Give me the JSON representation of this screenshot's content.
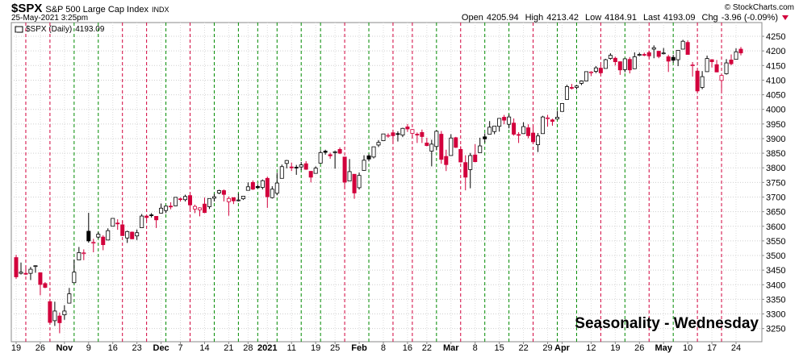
{
  "chart_data": {
    "type": "candlestick",
    "symbol": "$SPX",
    "name": "S&P 500 Large Cap Index",
    "exchange": "INDX",
    "date": "25-May-2021 3:25pm",
    "source": "© StockCharts.com",
    "labels": {
      "open": "Open",
      "high": "High",
      "low": "Low",
      "last": "Last",
      "chg": "Chg"
    },
    "change": "-3.96 (-0.09%)",
    "legend": "$SPX (Daily)",
    "annotation": "Seasonality - Wednesday",
    "categories": [
      "19",
      null,
      null,
      null,
      null,
      "26",
      null,
      null,
      null,
      null,
      "Nov",
      null,
      null,
      null,
      null,
      "9",
      null,
      null,
      null,
      null,
      "16",
      null,
      null,
      null,
      null,
      "23",
      null,
      null,
      null,
      null,
      "Dec",
      null,
      null,
      null,
      "7",
      null,
      null,
      null,
      null,
      "14",
      null,
      null,
      null,
      null,
      "21",
      null,
      null,
      null,
      "28",
      null,
      null,
      null,
      "2021",
      null,
      null,
      null,
      null,
      "11",
      null,
      null,
      null,
      null,
      "19",
      null,
      null,
      null,
      "25",
      null,
      null,
      null,
      null,
      "Feb",
      null,
      null,
      null,
      null,
      "8",
      null,
      null,
      null,
      null,
      "16",
      null,
      null,
      null,
      "22",
      null,
      null,
      null,
      null,
      "Mar",
      null,
      null,
      null,
      null,
      "8",
      null,
      null,
      null,
      null,
      "15",
      null,
      null,
      null,
      null,
      "22",
      null,
      null,
      null,
      null,
      "29",
      null,
      null,
      "Apr",
      null,
      null,
      null,
      null,
      null,
      "12",
      null,
      null,
      null,
      null,
      "19",
      null,
      null,
      null,
      null,
      "26",
      null,
      null,
      null,
      null,
      "May",
      null,
      null,
      null,
      null,
      "10",
      null,
      null,
      null,
      null,
      "17",
      null,
      null,
      null,
      null,
      "24",
      null
    ],
    "open": [
      3493,
      3439,
      3439,
      3439,
      3464,
      3441,
      3404,
      3342,
      3277,
      3293,
      3297,
      3337,
      3407,
      3485,
      3509,
      3583,
      3543,
      3563,
      3563,
      3553,
      3600,
      3611,
      3605,
      3560,
      3580,
      3567,
      3595,
      3635,
      3639,
      3634,
      3645,
      3654,
      3669,
      3670,
      3694,
      3691,
      3705,
      3659,
      3656,
      3676,
      3667,
      3696,
      3714,
      3722,
      3684,
      3698,
      3688,
      3694,
      3723,
      3750,
      3736,
      3733,
      3764,
      3698,
      3713,
      3764,
      3815,
      3803,
      3802,
      3803,
      3814,
      3788,
      3781,
      3816,
      3857,
      3845,
      3852,
      3863,
      3837,
      3755,
      3778,
      3732,
      3791,
      3841,
      3837,
      3878,
      3893,
      3911,
      3920,
      3917,
      3912,
      3940,
      3918,
      3915,
      3921,
      3885,
      3857,
      3873,
      3915,
      3839,
      3842,
      3903,
      3863,
      3818,
      3794,
      3844,
      3852,
      3906,
      3915,
      3924,
      3942,
      3973,
      3949,
      3953,
      3914,
      3917,
      3937,
      3919,
      3879,
      3917,
      3969,
      3964,
      3967,
      3993,
      4034,
      4075,
      4075,
      4089,
      4097,
      4125,
      4130,
      4141,
      4140,
      4174,
      4175,
      4163,
      4136,
      4171,
      4139,
      4185,
      4188,
      4194,
      4206,
      4199,
      4191,
      4180,
      4178,
      4170,
      4206,
      4229,
      4150,
      4131,
      4075,
      4129,
      4170,
      4153,
      4099,
      4122,
      4169,
      4171,
      4205.94
    ],
    "high": [
      3502,
      3476,
      3465,
      3461,
      3466,
      3441,
      3409,
      3342,
      3342,
      3305,
      3330,
      3389,
      3486,
      3529,
      3521,
      3646,
      3557,
      3581,
      3569,
      3593,
      3628,
      3624,
      3619,
      3585,
      3582,
      3589,
      3642,
      3635,
      3645,
      3634,
      3678,
      3670,
      3682,
      3700,
      3698,
      3708,
      3713,
      3674,
      3665,
      3698,
      3695,
      3711,
      3725,
      3726,
      3702,
      3698,
      3712,
      3703,
      3750,
      3757,
      3744,
      3760,
      3770,
      3737,
      3783,
      3811,
      3827,
      3818,
      3810,
      3820,
      3823,
      3789,
      3805,
      3860,
      3862,
      3852,
      3859,
      3870,
      3837,
      3830,
      3778,
      3784,
      3843,
      3848,
      3872,
      3895,
      3916,
      3918,
      3931,
      3925,
      3937,
      3950,
      3933,
      3921,
      3931,
      3903,
      3896,
      3928,
      3926,
      3862,
      3915,
      3906,
      3874,
      3843,
      3851,
      3881,
      3903,
      3918,
      3960,
      3944,
      3970,
      3981,
      3983,
      3969,
      3922,
      3956,
      3949,
      3942,
      3919,
      3978,
      3981,
      3968,
      3995,
      4021,
      4084,
      4087,
      4083,
      4099,
      4129,
      4131,
      4148,
      4151,
      4173,
      4192,
      4180,
      4164,
      4175,
      4179,
      4195,
      4194,
      4194,
      4201,
      4219,
      4199,
      4210,
      4187,
      4187,
      4203,
      4238,
      4236,
      4162,
      4135,
      4131,
      4184,
      4171,
      4169,
      4116,
      4172,
      4188,
      4209,
      4213.42
    ],
    "low": [
      3420,
      3435,
      3433,
      3416,
      3441,
      3364,
      3388,
      3269,
      3259,
      3234,
      3280,
      3337,
      3405,
      3485,
      3484,
      3544,
      3511,
      3558,
      3518,
      3552,
      3600,
      3588,
      3567,
      3543,
      3556,
      3553,
      3594,
      3617,
      3630,
      3594,
      3645,
      3645,
      3658,
      3669,
      3685,
      3685,
      3658,
      3645,
      3634,
      3645,
      3659,
      3685,
      3710,
      3685,
      3636,
      3676,
      3685,
      3690,
      3723,
      3724,
      3730,
      3726,
      3663,
      3695,
      3706,
      3764,
      3798,
      3789,
      3776,
      3792,
      3793,
      3750,
      3781,
      3816,
      3845,
      3831,
      3797,
      3847,
      3732,
      3755,
      3694,
      3726,
      3791,
      3822,
      3832,
      3871,
      3893,
      3903,
      3885,
      3890,
      3905,
      3923,
      3900,
      3885,
      3885,
      3874,
      3805,
      3860,
      3814,
      3789,
      3842,
      3868,
      3818,
      3723,
      3730,
      3819,
      3852,
      3886,
      3915,
      3915,
      3924,
      3949,
      3935,
      3910,
      3885,
      3917,
      3901,
      3889,
      3854,
      3917,
      3941,
      3944,
      3966,
      3993,
      4034,
      4068,
      4068,
      4083,
      4096,
      4114,
      4124,
      4120,
      4140,
      4170,
      4150,
      4118,
      4127,
      4123,
      4138,
      4182,
      4182,
      4177,
      4175,
      4175,
      4188,
      4128,
      4160,
      4148,
      4206,
      4188,
      4112,
      4060,
      4069,
      4129,
      4143,
      4127,
      4062,
      4119,
      4151,
      4171,
      4184.91
    ],
    "close": [
      3427,
      3443,
      3436,
      3453,
      3465,
      3401,
      3391,
      3271,
      3310,
      3270,
      3310,
      3369,
      3443,
      3510,
      3509,
      3550,
      3545,
      3573,
      3537,
      3585,
      3627,
      3609,
      3568,
      3582,
      3557,
      3578,
      3635,
      3630,
      3638,
      3622,
      3662,
      3669,
      3667,
      3699,
      3692,
      3702,
      3673,
      3668,
      3663,
      3647,
      3695,
      3701,
      3722,
      3709,
      3695,
      3687,
      3690,
      3703,
      3735,
      3727,
      3732,
      3756,
      3701,
      3727,
      3748,
      3804,
      3825,
      3800,
      3801,
      3810,
      3795,
      3768,
      3799,
      3852,
      3853,
      3841,
      3855,
      3850,
      3751,
      3787,
      3714,
      3774,
      3826,
      3830,
      3872,
      3887,
      3916,
      3911,
      3910,
      3916,
      3935,
      3933,
      3931,
      3914,
      3907,
      3876,
      3881,
      3925,
      3829,
      3811,
      3902,
      3870,
      3820,
      3768,
      3842,
      3821,
      3875,
      3899,
      3939,
      3943,
      3969,
      3963,
      3974,
      3915,
      3913,
      3941,
      3910,
      3889,
      3909,
      3974,
      3971,
      3959,
      3973,
      4020,
      4078,
      4074,
      4080,
      4097,
      4129,
      4128,
      4142,
      4125,
      4170,
      4185,
      4163,
      4135,
      4173,
      4135,
      4180,
      4188,
      4187,
      4183,
      4211,
      4181,
      4193,
      4165,
      4168,
      4202,
      4233,
      4188,
      4152,
      4063,
      4112,
      4174,
      4163,
      4128,
      4116,
      4159,
      4156,
      4197,
      4193.09
    ],
    "seasonality_days": [
      2,
      7,
      12,
      17,
      22,
      27,
      31,
      36,
      41,
      46,
      50,
      54,
      59,
      63,
      68,
      73,
      78,
      82,
      87,
      92,
      97,
      102,
      107,
      112,
      116,
      121,
      126,
      131,
      136,
      141,
      146
    ],
    "ylim": [
      3205,
      4297
    ],
    "yticks": [
      3250,
      3300,
      3350,
      3400,
      3450,
      3500,
      3550,
      3600,
      3650,
      3700,
      3750,
      3800,
      3850,
      3900,
      3950,
      4000,
      4050,
      4100,
      4150,
      4200,
      4250
    ],
    "grid": true,
    "colors": {
      "up": "#000000",
      "down": "#d2003c",
      "up_line": "#008a00",
      "down_line": "#d2003c",
      "annotation": "#1c1cd6"
    }
  }
}
